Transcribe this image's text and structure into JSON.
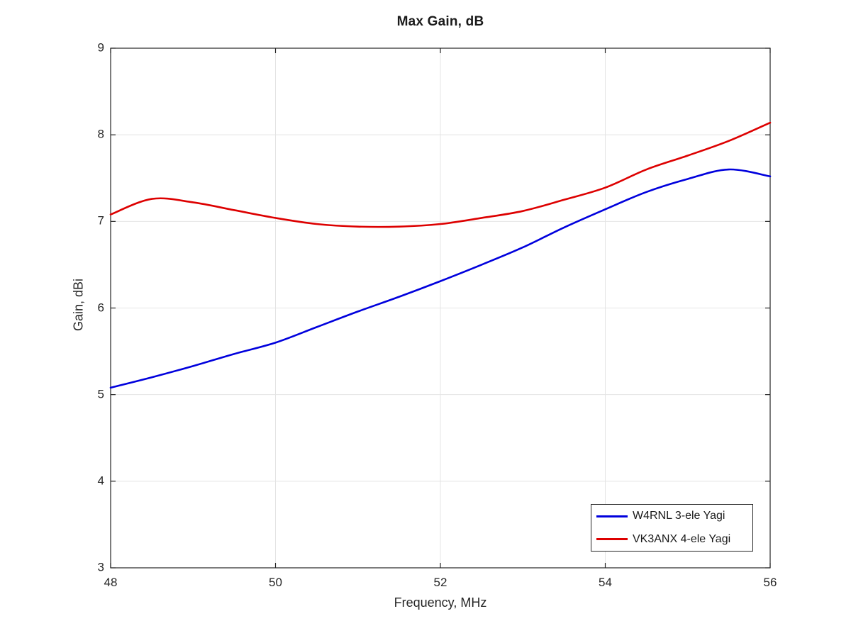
{
  "figure": {
    "background": "#ffffff",
    "axis_color": "#262626",
    "grid_color": "#e4e4e4"
  },
  "chart_data": {
    "type": "line",
    "title": "Max Gain, dB",
    "xlabel": "Frequency, MHz",
    "ylabel": "Gain, dBi",
    "xlim": [
      48,
      56
    ],
    "ylim": [
      3,
      9
    ],
    "x_ticks": [
      "48",
      "50",
      "52",
      "54",
      "56"
    ],
    "x_tick_values": [
      48,
      50,
      52,
      54,
      56
    ],
    "y_ticks": [
      "3",
      "4",
      "5",
      "6",
      "7",
      "8",
      "9"
    ],
    "y_tick_values": [
      3,
      4,
      5,
      6,
      7,
      8,
      9
    ],
    "grid": true,
    "legend_position": "bottom-right",
    "x": [
      48,
      48.5,
      49,
      49.5,
      50,
      50.5,
      51,
      51.5,
      52,
      52.5,
      53,
      53.5,
      54,
      54.5,
      55,
      55.5,
      56
    ],
    "series": [
      {
        "name": "W4RNL 3-ele Yagi",
        "color": "#0000dd",
        "values": [
          5.08,
          5.2,
          5.33,
          5.47,
          5.6,
          5.78,
          5.96,
          6.13,
          6.31,
          6.5,
          6.7,
          6.93,
          7.14,
          7.34,
          7.49,
          7.6,
          7.52
        ]
      },
      {
        "name": "VK3ANX 4-ele Yagi",
        "color": "#dd0000",
        "values": [
          7.08,
          7.26,
          7.22,
          7.13,
          7.04,
          6.97,
          6.94,
          6.94,
          6.97,
          7.04,
          7.12,
          7.25,
          7.39,
          7.6,
          7.76,
          7.93,
          8.14
        ]
      }
    ]
  }
}
